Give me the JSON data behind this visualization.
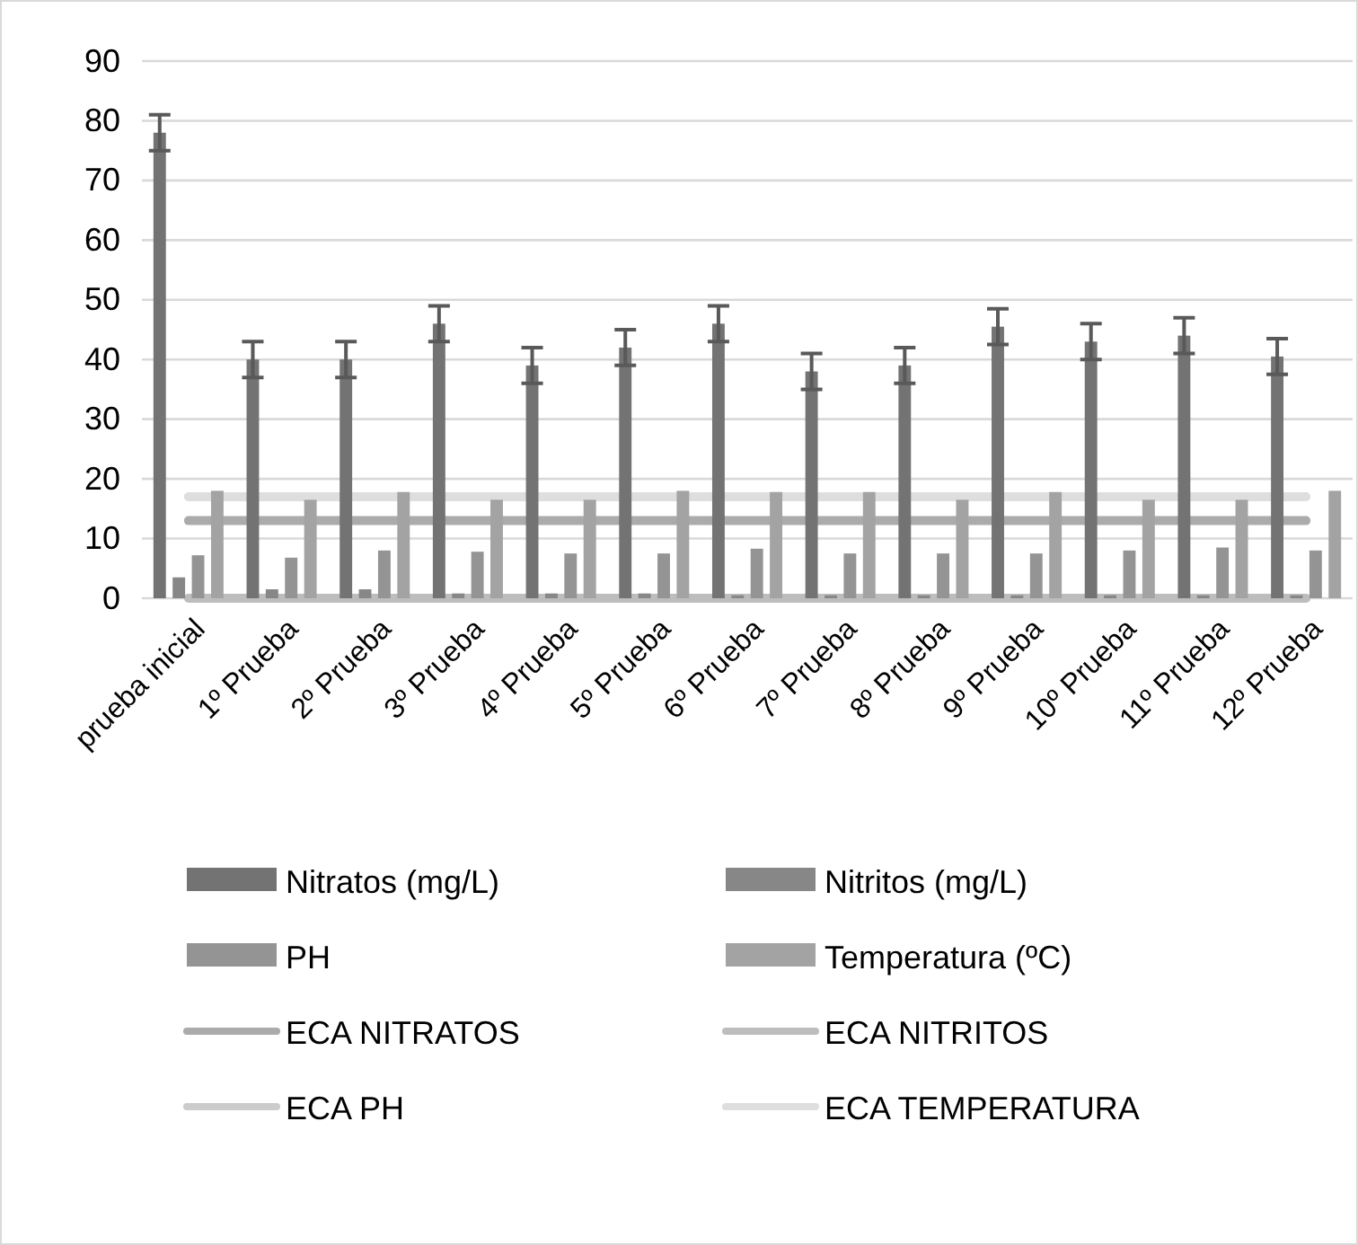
{
  "chart_data": {
    "type": "bar",
    "categories": [
      "prueba inicial",
      "1º Prueba",
      "2º Prueba",
      "3º Prueba",
      "4º Prueba",
      "5º Prueba",
      "6º Prueba",
      "7º Prueba",
      "8º Prueba",
      "9º Prueba",
      "10º Prueba",
      "11º Prueba",
      "12º Prueba"
    ],
    "series": [
      {
        "name": "Nitratos (mg/L)",
        "color": "#737373",
        "values": [
          78,
          40,
          40,
          46,
          39,
          42,
          46,
          38,
          39,
          45.5,
          43,
          44,
          40.5
        ],
        "errors": [
          3,
          3,
          3,
          3,
          3,
          3,
          3,
          3,
          3,
          3,
          3,
          3,
          3
        ]
      },
      {
        "name": "Nitritos (mg/L)",
        "color": "#878787",
        "values": [
          3.5,
          1.5,
          1.5,
          0.8,
          0.8,
          0.8,
          0.5,
          0.5,
          0.5,
          0.5,
          0.5,
          0.5,
          0.5
        ]
      },
      {
        "name": "PH",
        "color": "#949494",
        "values": [
          7.2,
          6.8,
          8,
          7.8,
          7.5,
          7.5,
          8.3,
          7.5,
          7.5,
          7.5,
          8,
          8.5,
          8
        ]
      },
      {
        "name": "Temperatura (ºC)",
        "color": "#a3a3a3",
        "values": [
          18,
          16.5,
          17.8,
          16.5,
          16.5,
          18,
          17.8,
          17.8,
          16.5,
          17.8,
          16.5,
          16.5,
          18
        ]
      },
      {
        "name": "ECA NITRATOS",
        "type": "line",
        "color": "#ababab",
        "values": [
          13,
          13,
          13,
          13,
          13,
          13,
          13,
          13,
          13,
          13,
          13,
          13,
          13
        ]
      },
      {
        "name": "ECA NITRITOS",
        "type": "line",
        "color": "#bdbdbd",
        "values": [
          0,
          0,
          0,
          0,
          0,
          0,
          0,
          0,
          0,
          0,
          0,
          0,
          0
        ]
      },
      {
        "name": "ECA PH",
        "type": "line",
        "color": "#cccccc",
        "values": [
          null,
          null,
          null,
          null,
          null,
          null,
          null,
          null,
          null,
          null,
          null,
          null,
          null
        ]
      },
      {
        "name": "ECA TEMPERATURA",
        "type": "line",
        "color": "#dedede",
        "values": [
          17,
          17,
          17,
          17,
          17,
          17,
          17,
          17,
          17,
          17,
          17,
          17,
          17
        ]
      }
    ],
    "ylim": [
      0,
      90
    ],
    "yticks": [
      0,
      10,
      20,
      30,
      40,
      50,
      60,
      70,
      80,
      90
    ],
    "grid": "y",
    "legend": "bottom"
  }
}
